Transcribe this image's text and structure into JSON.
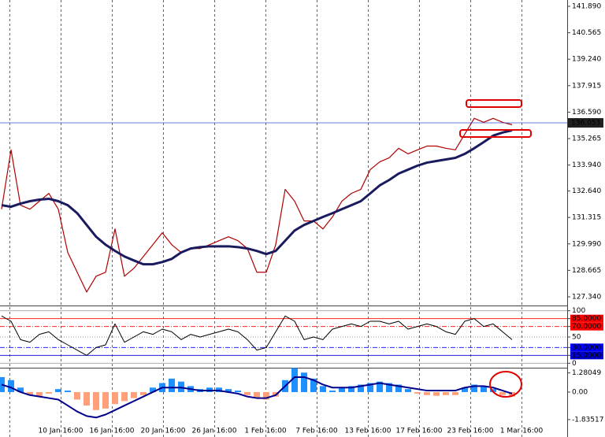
{
  "chart_data": [
    {
      "type": "line",
      "ylim": [
        126.905,
        142.206
      ],
      "yticks": [
        {
          "value": 141.89,
          "label": "141.890"
        },
        {
          "value": 140.565,
          "label": "140.565"
        },
        {
          "value": 139.24,
          "label": "139.240"
        },
        137.915,
        {
          "value": 136.59,
          "label": "136.590"
        },
        135.265,
        {
          "value": 133.94,
          "label": "133.940"
        },
        {
          "value": 132.64,
          "label": "132.640"
        },
        131.315,
        {
          "value": 129.99,
          "label": "129.990"
        },
        128.665,
        {
          "value": 127.34,
          "label": "127.340"
        }
      ],
      "last_price": 136.053,
      "series": [
        {
          "color": "#b00000",
          "values": [
            131.73,
            134.7,
            131.93,
            131.73,
            132.13,
            132.52,
            131.73,
            129.56,
            128.57,
            127.58,
            128.37,
            128.57,
            130.74,
            128.37,
            128.77,
            129.36,
            129.95,
            130.55,
            129.95,
            129.56,
            129.76,
            129.76,
            129.95,
            130.15,
            130.35,
            130.15,
            129.76,
            128.57,
            128.57,
            129.95,
            132.72,
            132.13,
            131.14,
            131.14,
            130.74,
            131.34,
            132.13,
            132.52,
            132.72,
            133.71,
            134.1,
            134.3,
            134.78,
            134.5,
            134.7,
            134.89,
            134.89,
            134.78,
            134.7,
            135.49,
            136.28,
            136.08,
            136.28,
            136.08,
            135.96
          ]
        },
        {
          "color": "#1a1a5e",
          "values": [
            131.93,
            131.85,
            132.01,
            132.13,
            132.21,
            132.25,
            132.13,
            131.93,
            131.53,
            130.94,
            130.35,
            129.95,
            129.64,
            129.36,
            129.16,
            128.97,
            128.97,
            129.08,
            129.24,
            129.56,
            129.76,
            129.83,
            129.87,
            129.87,
            129.87,
            129.83,
            129.76,
            129.64,
            129.48,
            129.64,
            130.15,
            130.66,
            130.94,
            131.14,
            131.34,
            131.53,
            131.73,
            131.93,
            132.13,
            132.52,
            132.92,
            133.19,
            133.51,
            133.71,
            133.91,
            134.06,
            134.14,
            134.22,
            134.3,
            134.5,
            134.78,
            135.09,
            135.41,
            135.57,
            135.68
          ]
        }
      ]
    },
    {
      "type": "line",
      "ylim": [
        -7,
        107
      ],
      "yticks": [
        100,
        {
          "value": 85,
          "label": "85.0000"
        },
        {
          "value": 70,
          "label": "70.0000"
        },
        50,
        {
          "value": 30,
          "label": "30.0000"
        },
        {
          "value": 15,
          "label": "15.0000"
        },
        0
      ],
      "level_colors": [
        "#a0a0a0",
        "#ff0000",
        "#ff0000",
        "#808080",
        "#0000ff",
        "#0000cc",
        "#a0a0a0"
      ],
      "series": [
        {
          "color": "#000000",
          "values": [
            90,
            80,
            45,
            40,
            55,
            60,
            45,
            35,
            25,
            15,
            30,
            35,
            75,
            40,
            50,
            60,
            55,
            65,
            60,
            45,
            55,
            50,
            55,
            60,
            65,
            60,
            45,
            25,
            30,
            60,
            90,
            80,
            45,
            50,
            45,
            65,
            70,
            75,
            70,
            80,
            80,
            75,
            80,
            65,
            70,
            75,
            70,
            60,
            55,
            80,
            85,
            70,
            75,
            60,
            45
          ]
        }
      ]
    },
    {
      "type": "bar",
      "ylim": [
        -2.21,
        1.47
      ],
      "yticks": [
        1.28049,
        {
          "value": 0,
          "label": "0.00"
        },
        -1.83517
      ],
      "color": "#1e90ff",
      "negative_color": "#ffa07a",
      "values": [
        1.0,
        0.8,
        0.3,
        -0.2,
        -0.3,
        -0.1,
        0.2,
        0.1,
        -0.5,
        -0.9,
        -1.2,
        -1.1,
        -0.8,
        -0.6,
        -0.4,
        -0.2,
        0.3,
        0.6,
        0.9,
        0.7,
        0.4,
        0.2,
        0.3,
        0.3,
        0.2,
        0.1,
        -0.2,
        -0.4,
        -0.5,
        -0.3,
        0.8,
        1.6,
        1.3,
        0.9,
        0.4,
        0.1,
        0.3,
        0.4,
        0.5,
        0.6,
        0.7,
        0.6,
        0.5,
        0.2,
        -0.1,
        -0.2,
        -0.25,
        -0.2,
        -0.2,
        0.3,
        0.5,
        0.4,
        0.2,
        -0.2,
        -0.3
      ],
      "series": [
        {
          "color": "#00008b",
          "values": [
            0.5,
            0.3,
            0,
            -0.2,
            -0.3,
            -0.4,
            -0.5,
            -0.9,
            -1.3,
            -1.6,
            -1.7,
            -1.5,
            -1.2,
            -0.9,
            -0.6,
            -0.3,
            0,
            0.3,
            0.3,
            0.3,
            0.2,
            0.1,
            0.1,
            0.1,
            0,
            -0.1,
            -0.3,
            -0.4,
            -0.4,
            -0.2,
            0.4,
            1.0,
            1.0,
            0.8,
            0.5,
            0.3,
            0.3,
            0.3,
            0.4,
            0.5,
            0.6,
            0.5,
            0.4,
            0.3,
            0.2,
            0.1,
            0.1,
            0.1,
            0.1,
            0.3,
            0.4,
            0.4,
            0.3,
            0.1,
            -0.1
          ]
        }
      ],
      "x_labels": [
        "10 Jan 16:00",
        "16 Jan 16:00",
        "20 Jan 16:00",
        "26 Jan 16:00",
        "1 Feb 16:00",
        "7 Feb 16:00",
        "13 Feb 16:00",
        "17 Feb 16:00",
        "23 Feb 16:00",
        "1 Mar 16:00"
      ]
    }
  ]
}
